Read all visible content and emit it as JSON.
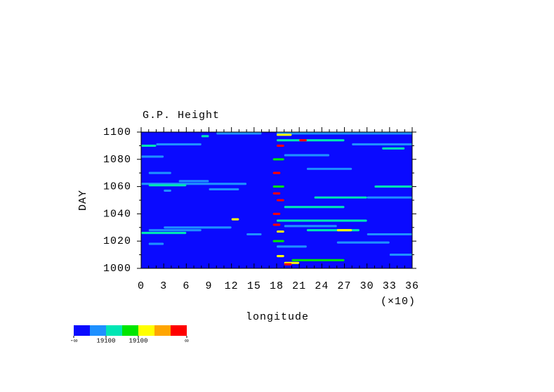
{
  "chart_data": {
    "type": "contour",
    "title": "G.P. Height",
    "x_label": "longitude",
    "x_scale_note": "(×10)",
    "y_label": "DAY",
    "xlim": [
      0,
      36
    ],
    "xticks": [
      0,
      3,
      6,
      9,
      12,
      15,
      18,
      21,
      24,
      27,
      30,
      33,
      36
    ],
    "ylim": [
      1000,
      1100
    ],
    "yticks": [
      1000,
      1020,
      1040,
      1060,
      1080,
      1100
    ],
    "level_colors": [
      "#0a0aff",
      "#1e90ff",
      "#00e6b4",
      "#00e600",
      "#ffff00",
      "#ffa500",
      "#ff0000"
    ],
    "colorbar_labels": [
      {
        "boundary": 0,
        "label": "-∞"
      },
      {
        "boundary": 2,
        "label": "19100"
      },
      {
        "boundary": 4,
        "label": "19100"
      },
      {
        "boundary": 7,
        "label": "∞"
      }
    ],
    "streaks": [
      [
        0,
        2,
        1090,
        2
      ],
      [
        2,
        8,
        1091,
        1
      ],
      [
        8,
        9,
        1097,
        2
      ],
      [
        10,
        16,
        1099,
        1
      ],
      [
        0,
        3,
        1082,
        1
      ],
      [
        1,
        4,
        1070,
        1
      ],
      [
        0,
        14,
        1062,
        1
      ],
      [
        1,
        6,
        1061,
        2
      ],
      [
        3,
        4,
        1057,
        1
      ],
      [
        0,
        6,
        1026,
        2
      ],
      [
        1,
        8,
        1028,
        1
      ],
      [
        3,
        12,
        1030,
        1
      ],
      [
        1,
        3,
        1018,
        1
      ],
      [
        12,
        13,
        1036,
        4
      ],
      [
        5,
        9,
        1064,
        1
      ],
      [
        14,
        16,
        1025,
        1
      ],
      [
        9,
        13,
        1058,
        1
      ],
      [
        18,
        36,
        1099,
        1
      ],
      [
        18,
        27,
        1094,
        2
      ],
      [
        28,
        36,
        1091,
        1
      ],
      [
        32,
        35,
        1088,
        2
      ],
      [
        19,
        25,
        1083,
        1
      ],
      [
        22,
        28,
        1073,
        1
      ],
      [
        31,
        36,
        1060,
        2
      ],
      [
        23,
        30,
        1052,
        2
      ],
      [
        30,
        36,
        1052,
        1
      ],
      [
        19,
        27,
        1045,
        2
      ],
      [
        18,
        30,
        1035,
        2
      ],
      [
        22,
        29,
        1028,
        2
      ],
      [
        26,
        28,
        1028,
        4
      ],
      [
        19,
        26,
        1031,
        1
      ],
      [
        18,
        22,
        1016,
        1
      ],
      [
        26,
        33,
        1019,
        1
      ],
      [
        20,
        27,
        1006,
        3
      ],
      [
        19,
        21,
        1004,
        4
      ],
      [
        30,
        36,
        1025,
        1
      ],
      [
        33,
        36,
        1010,
        1
      ],
      [
        18,
        19,
        1090,
        6
      ],
      [
        17.5,
        18.5,
        1070,
        6
      ],
      [
        17.5,
        18.5,
        1055,
        6
      ],
      [
        18,
        19,
        1050,
        6
      ],
      [
        17.5,
        18.5,
        1040,
        6
      ],
      [
        17.5,
        18.5,
        1032,
        6
      ],
      [
        18,
        19,
        1027,
        4
      ],
      [
        18,
        19,
        1009,
        4
      ],
      [
        17.5,
        19,
        1020,
        3
      ],
      [
        17.5,
        19,
        1060,
        3
      ],
      [
        17.5,
        19,
        1080,
        3
      ],
      [
        18,
        20,
        1098,
        4
      ],
      [
        21,
        22,
        1094,
        6
      ],
      [
        19,
        20,
        1003,
        6
      ]
    ]
  }
}
